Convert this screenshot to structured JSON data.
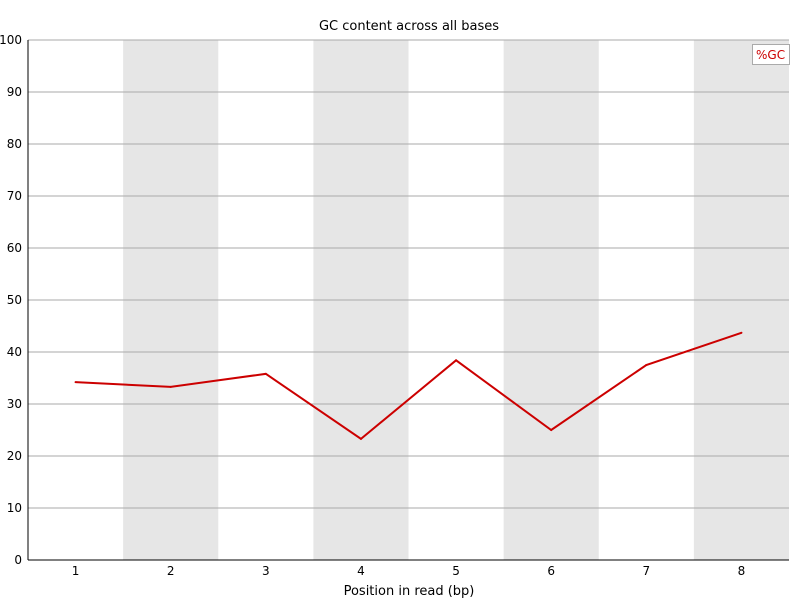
{
  "chart_data": {
    "type": "line",
    "title": "GC content across all bases",
    "xlabel": "Position in read (bp)",
    "ylabel": "",
    "categories": [
      "1",
      "2",
      "3",
      "4",
      "5",
      "6",
      "7",
      "8"
    ],
    "ylim": [
      0,
      100
    ],
    "yticks": [
      0,
      10,
      20,
      30,
      40,
      50,
      60,
      70,
      80,
      90,
      100
    ],
    "grid": true,
    "legend_position": "top-right",
    "series": [
      {
        "name": "%GC",
        "color": "#cc0000",
        "values": [
          34.2,
          33.3,
          35.8,
          23.3,
          38.4,
          25.0,
          37.5,
          43.7
        ]
      }
    ],
    "band_color": "#e6e6e6",
    "grid_color": "#aaaaaa"
  }
}
